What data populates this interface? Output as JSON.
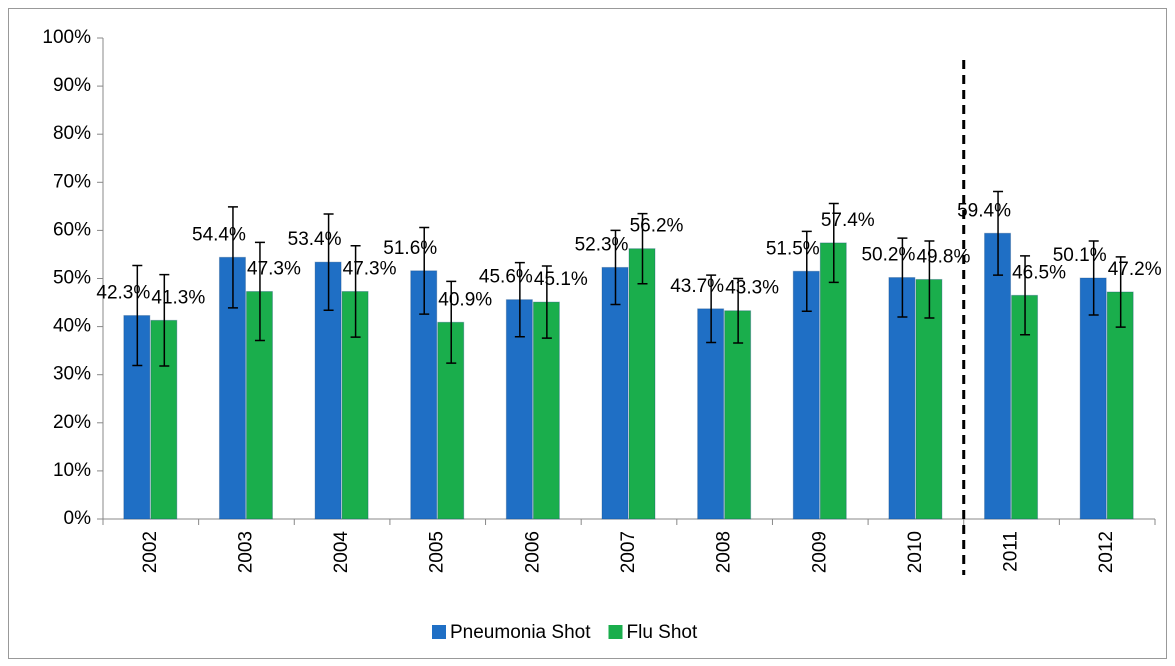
{
  "chart_data": {
    "type": "bar",
    "categories": [
      "2002",
      "2003",
      "2004",
      "2005",
      "2006",
      "2007",
      "2008",
      "2009",
      "2010",
      "2011",
      "2012"
    ],
    "series": [
      {
        "name": "Pneumonia Shot",
        "color": "#1f6fc5",
        "values": [
          42.3,
          54.4,
          53.4,
          51.6,
          45.6,
          52.3,
          43.7,
          51.5,
          50.2,
          59.4,
          50.1
        ],
        "value_labels": [
          "42.3%",
          "54.4%",
          "53.4%",
          "51.6%",
          "45.6%",
          "52.3%",
          "43.7%",
          "51.5%",
          "50.2%",
          "59.4%",
          "50.1%"
        ],
        "errors": [
          10.4,
          10.5,
          10,
          9,
          7.7,
          7.7,
          7,
          8.3,
          8.2,
          8.7,
          7.7
        ]
      },
      {
        "name": "Flu Shot",
        "color": "#1aae4c",
        "values": [
          41.3,
          47.3,
          47.3,
          40.9,
          45.1,
          56.2,
          43.3,
          57.4,
          49.8,
          46.5,
          47.2
        ],
        "value_labels": [
          "41.3%",
          "47.3%",
          "47.3%",
          "40.9%",
          "45.1%",
          "56.2%",
          "43.3%",
          "57.4%",
          "49.8%",
          "46.5%",
          "47.2%"
        ],
        "errors": [
          9.5,
          10.2,
          9.5,
          8.5,
          7.5,
          7.3,
          6.7,
          8.2,
          8,
          8.2,
          7.3
        ]
      }
    ],
    "ylim": [
      0,
      100
    ],
    "yticks": [
      {
        "value": 0,
        "label": "0%"
      },
      {
        "value": 10,
        "label": "10%"
      },
      {
        "value": 20,
        "label": "20%"
      },
      {
        "value": 30,
        "label": "30%"
      },
      {
        "value": 40,
        "label": "40%"
      },
      {
        "value": 50,
        "label": "50%"
      },
      {
        "value": 60,
        "label": "60%"
      },
      {
        "value": 70,
        "label": "70%"
      },
      {
        "value": 80,
        "label": "80%"
      },
      {
        "value": 90,
        "label": "90%"
      },
      {
        "value": 100,
        "label": "100%"
      }
    ],
    "legend": "bottom"
  }
}
